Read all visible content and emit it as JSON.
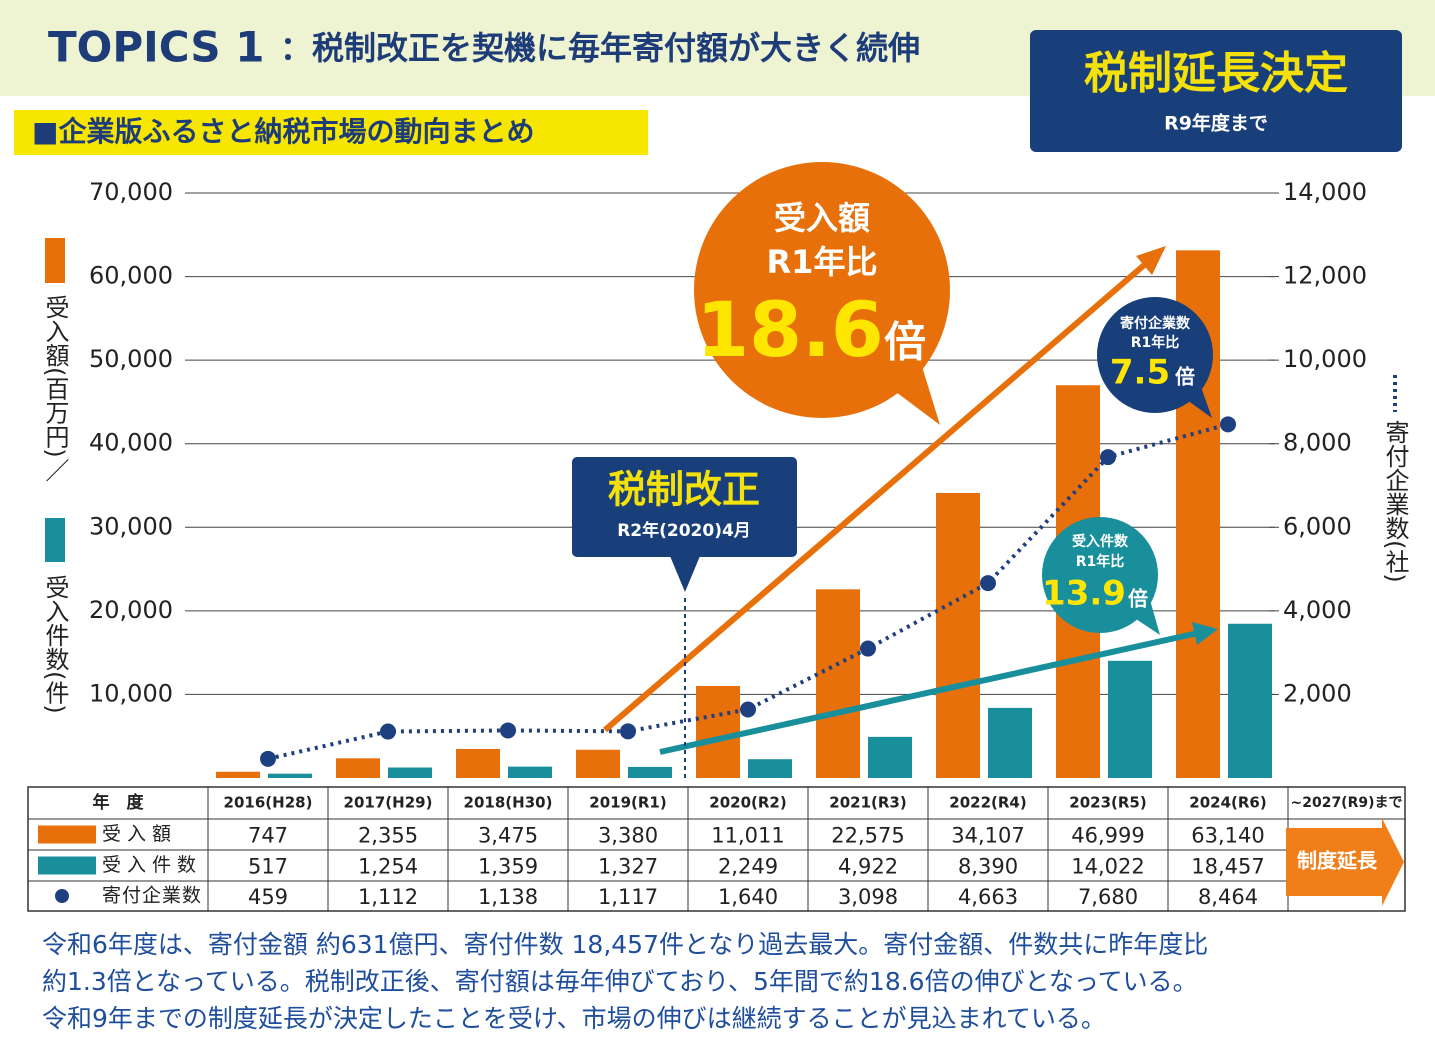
{
  "header": {
    "topic": "TOPICS 1",
    "title": "：税制改正を契機に毎年寄付額が大きく続伸",
    "badge_title": "税制延長決定",
    "badge_sub": "R9年度まで",
    "subtitle": "■企業版ふるさと納税市場の動向まとめ"
  },
  "chart_data": {
    "type": "bar",
    "categories": [
      "2016(H28)",
      "2017(H29)",
      "2018(H30)",
      "2019(R1)",
      "2020(R2)",
      "2021(R3)",
      "2022(R4)",
      "2023(R5)",
      "2024(R6)"
    ],
    "x_label": "年　度",
    "y_label": [
      "受入額(百万円)／",
      "受入件数(件)"
    ],
    "y2_label": "寄付企業数(社)",
    "ylim": [
      0,
      70000
    ],
    "yticks": [
      {
        "value": 10000,
        "label": "10,000"
      },
      {
        "value": 20000,
        "label": "20,000"
      },
      {
        "value": 30000,
        "label": "30,000"
      },
      {
        "value": 40000,
        "label": "40,000"
      },
      {
        "value": 50000,
        "label": "50,000"
      },
      {
        "value": 60000,
        "label": "60,000"
      },
      {
        "value": 70000,
        "label": "70,000"
      }
    ],
    "y2lim": [
      0,
      14000
    ],
    "y2ticks": [
      {
        "value": 2000,
        "label": "2,000"
      },
      {
        "value": 4000,
        "label": "4,000"
      },
      {
        "value": 6000,
        "label": "6,000"
      },
      {
        "value": 8000,
        "label": "8,000"
      },
      {
        "value": 10000,
        "label": "10,000"
      },
      {
        "value": 12000,
        "label": "12,000"
      },
      {
        "value": 14000,
        "label": "14,000"
      }
    ],
    "grid": true,
    "series": [
      {
        "name": "受入額",
        "type": "bar",
        "color": "#e8700a",
        "values": [
          747,
          2355,
          3475,
          3380,
          11011,
          22575,
          34107,
          46999,
          63140
        ],
        "value_labels": [
          "747",
          "2,355",
          "3,475",
          "3,380",
          "11,011",
          "22,575",
          "34,107",
          "46,999",
          "63,140"
        ]
      },
      {
        "name": "受入件数",
        "type": "bar",
        "color": "#1a8f9c",
        "values": [
          517,
          1254,
          1359,
          1327,
          2249,
          4922,
          8390,
          14022,
          18457
        ],
        "value_labels": [
          "517",
          "1,254",
          "1,359",
          "1,327",
          "2,249",
          "4,922",
          "8,390",
          "14,022",
          "18,457"
        ]
      },
      {
        "name": "寄付企業数",
        "type": "line",
        "axis": "y2",
        "color": "#1e3f80",
        "values": [
          459,
          1112,
          1138,
          1117,
          1640,
          3098,
          4663,
          7680,
          8464
        ],
        "value_labels": [
          "459",
          "1,112",
          "1,138",
          "1,117",
          "1,640",
          "3,098",
          "4,663",
          "7,680",
          "8,464"
        ]
      }
    ],
    "extension_column": "~2027(R9)まで",
    "extension_label": "制度延長",
    "annotations": {
      "reform": [
        "税制改正",
        "R2年(2020)4月"
      ],
      "amount": [
        "受入額",
        "R1年比",
        "18.6",
        "倍"
      ],
      "companies": [
        "寄付企業数",
        "R1年比",
        "7.5",
        "倍"
      ],
      "count": [
        "受入件数",
        "R1年比",
        "13.9",
        "倍"
      ]
    }
  },
  "footer": [
    "令和6年度は、寄付金額 約631億円、寄付件数 18,457件となり過去最大。寄付金額、件数共に昨年度比",
    "約1.3倍となっている。税制改正後、寄付額は毎年伸びており、5年間で約18.6倍の伸びとなっている。",
    "令和9年までの制度延長が決定したことを受け、市場の伸びは継続することが見込まれている。"
  ]
}
